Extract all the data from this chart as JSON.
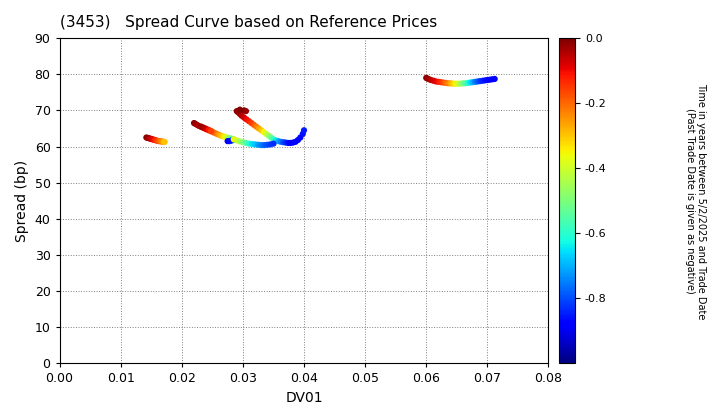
{
  "title": "(3453)   Spread Curve based on Reference Prices",
  "xlabel": "DV01",
  "ylabel": "Spread (bp)",
  "xlim": [
    0.0,
    0.08
  ],
  "ylim": [
    0,
    90
  ],
  "xticks": [
    0.0,
    0.01,
    0.02,
    0.03,
    0.04,
    0.05,
    0.06,
    0.07,
    0.08
  ],
  "yticks": [
    0,
    10,
    20,
    30,
    40,
    50,
    60,
    70,
    80,
    90
  ],
  "colorbar_label_lines": [
    "Time in years between 5/2/2025 and Trade Date",
    "(Past Trade Date is given as negative)"
  ],
  "cbar_min": -1.0,
  "cbar_max": 0.0,
  "cbar_ticks": [
    0.0,
    -0.2,
    -0.4,
    -0.6,
    -0.8
  ],
  "background_color": "#ffffff",
  "point_size": 20,
  "clusters": [
    {
      "points": [
        [
          0.0142,
          62.5,
          -0.01
        ],
        [
          0.0144,
          62.4,
          -0.02
        ],
        [
          0.0146,
          62.3,
          -0.03
        ],
        [
          0.0148,
          62.2,
          -0.04
        ],
        [
          0.015,
          62.1,
          -0.06
        ],
        [
          0.0152,
          62.0,
          -0.08
        ],
        [
          0.0154,
          61.9,
          -0.1
        ],
        [
          0.0156,
          61.8,
          -0.12
        ],
        [
          0.0158,
          61.7,
          -0.14
        ],
        [
          0.016,
          61.6,
          -0.16
        ],
        [
          0.0162,
          61.5,
          -0.18
        ],
        [
          0.0164,
          61.5,
          -0.2
        ],
        [
          0.0166,
          61.4,
          -0.22
        ],
        [
          0.0168,
          61.4,
          -0.24
        ],
        [
          0.017,
          61.3,
          -0.27
        ],
        [
          0.0172,
          61.3,
          -0.3
        ]
      ]
    },
    {
      "points": [
        [
          0.022,
          66.5,
          -0.01
        ],
        [
          0.0222,
          66.3,
          -0.02
        ],
        [
          0.0225,
          66.0,
          -0.03
        ],
        [
          0.0228,
          65.7,
          -0.04
        ],
        [
          0.0232,
          65.4,
          -0.06
        ],
        [
          0.0236,
          65.1,
          -0.08
        ],
        [
          0.024,
          64.8,
          -0.1
        ],
        [
          0.0244,
          64.5,
          -0.12
        ],
        [
          0.0248,
          64.2,
          -0.15
        ],
        [
          0.0252,
          63.9,
          -0.18
        ],
        [
          0.0256,
          63.6,
          -0.21
        ],
        [
          0.026,
          63.3,
          -0.25
        ],
        [
          0.0264,
          63.0,
          -0.29
        ],
        [
          0.0268,
          62.8,
          -0.33
        ],
        [
          0.0272,
          62.6,
          -0.37
        ],
        [
          0.0275,
          62.4,
          -0.42
        ],
        [
          0.0278,
          62.3,
          -0.47
        ],
        [
          0.028,
          62.2,
          -0.52
        ],
        [
          0.0282,
          62.1,
          -0.57
        ],
        [
          0.0284,
          62.0,
          -0.62
        ],
        [
          0.0285,
          61.9,
          -0.67
        ],
        [
          0.0284,
          61.8,
          -0.72
        ],
        [
          0.0282,
          61.7,
          -0.77
        ],
        [
          0.028,
          61.6,
          -0.82
        ],
        [
          0.0278,
          61.5,
          -0.86
        ],
        [
          0.0275,
          61.5,
          -0.88
        ]
      ]
    },
    {
      "points": [
        [
          0.0232,
          65.5,
          -0.02
        ],
        [
          0.0236,
          65.2,
          -0.04
        ],
        [
          0.024,
          64.9,
          -0.07
        ],
        [
          0.0244,
          64.6,
          -0.11
        ],
        [
          0.0248,
          64.3,
          -0.16
        ]
      ]
    },
    {
      "points": [
        [
          0.029,
          69.8,
          -0.01
        ],
        [
          0.0292,
          69.5,
          -0.02
        ],
        [
          0.0295,
          69.0,
          -0.03
        ],
        [
          0.0298,
          68.5,
          -0.05
        ],
        [
          0.0302,
          68.0,
          -0.07
        ],
        [
          0.0306,
          67.5,
          -0.1
        ],
        [
          0.031,
          67.0,
          -0.12
        ],
        [
          0.0314,
          66.5,
          -0.15
        ],
        [
          0.0318,
          66.0,
          -0.18
        ],
        [
          0.0322,
          65.5,
          -0.22
        ],
        [
          0.0326,
          65.0,
          -0.26
        ],
        [
          0.033,
          64.5,
          -0.3
        ],
        [
          0.0334,
          64.0,
          -0.35
        ],
        [
          0.0338,
          63.5,
          -0.4
        ],
        [
          0.0342,
          63.0,
          -0.46
        ],
        [
          0.0346,
          62.5,
          -0.52
        ],
        [
          0.035,
          62.0,
          -0.58
        ],
        [
          0.0354,
          61.7,
          -0.64
        ],
        [
          0.0358,
          61.5,
          -0.7
        ],
        [
          0.0362,
          61.3,
          -0.75
        ],
        [
          0.0366,
          61.2,
          -0.8
        ],
        [
          0.037,
          61.1,
          -0.83
        ],
        [
          0.0374,
          61.0,
          -0.86
        ],
        [
          0.0378,
          61.0,
          -0.88
        ],
        [
          0.0382,
          61.1,
          -0.89
        ],
        [
          0.0386,
          61.3,
          -0.89
        ],
        [
          0.039,
          61.8,
          -0.88
        ],
        [
          0.0394,
          62.5,
          -0.87
        ],
        [
          0.0398,
          63.5,
          -0.86
        ],
        [
          0.04,
          64.5,
          -0.85
        ],
        [
          0.0302,
          70.0,
          -0.01
        ],
        [
          0.0305,
          69.8,
          -0.02
        ],
        [
          0.0295,
          70.2,
          0.0
        ]
      ]
    },
    {
      "points": [
        [
          0.0285,
          62.0,
          -0.35
        ],
        [
          0.029,
          61.7,
          -0.4
        ],
        [
          0.0295,
          61.4,
          -0.45
        ],
        [
          0.03,
          61.2,
          -0.5
        ],
        [
          0.0305,
          61.0,
          -0.55
        ],
        [
          0.031,
          60.8,
          -0.6
        ],
        [
          0.0315,
          60.7,
          -0.65
        ],
        [
          0.032,
          60.6,
          -0.68
        ],
        [
          0.0325,
          60.5,
          -0.72
        ],
        [
          0.033,
          60.4,
          -0.75
        ],
        [
          0.0335,
          60.4,
          -0.78
        ],
        [
          0.034,
          60.5,
          -0.8
        ],
        [
          0.0345,
          60.6,
          -0.82
        ],
        [
          0.035,
          60.8,
          -0.83
        ]
      ]
    },
    {
      "points": [
        [
          0.06,
          79.0,
          -0.01
        ],
        [
          0.0602,
          78.8,
          -0.02
        ],
        [
          0.0605,
          78.6,
          -0.03
        ],
        [
          0.0608,
          78.4,
          -0.05
        ],
        [
          0.0612,
          78.2,
          -0.07
        ],
        [
          0.0616,
          78.0,
          -0.09
        ],
        [
          0.062,
          77.9,
          -0.11
        ],
        [
          0.0624,
          77.8,
          -0.14
        ],
        [
          0.0628,
          77.7,
          -0.17
        ],
        [
          0.0632,
          77.6,
          -0.2
        ],
        [
          0.0636,
          77.5,
          -0.23
        ],
        [
          0.064,
          77.5,
          -0.27
        ],
        [
          0.0644,
          77.4,
          -0.31
        ],
        [
          0.0648,
          77.4,
          -0.35
        ],
        [
          0.0652,
          77.4,
          -0.4
        ],
        [
          0.0656,
          77.4,
          -0.45
        ],
        [
          0.066,
          77.5,
          -0.5
        ],
        [
          0.0664,
          77.5,
          -0.55
        ],
        [
          0.0668,
          77.6,
          -0.6
        ],
        [
          0.0672,
          77.7,
          -0.65
        ],
        [
          0.0676,
          77.8,
          -0.7
        ],
        [
          0.068,
          77.9,
          -0.75
        ],
        [
          0.0684,
          78.0,
          -0.79
        ],
        [
          0.0688,
          78.1,
          -0.82
        ],
        [
          0.0692,
          78.2,
          -0.84
        ],
        [
          0.0696,
          78.3,
          -0.86
        ],
        [
          0.07,
          78.4,
          -0.87
        ],
        [
          0.0704,
          78.5,
          -0.88
        ],
        [
          0.0708,
          78.6,
          -0.88
        ],
        [
          0.0712,
          78.7,
          -0.88
        ]
      ]
    }
  ]
}
